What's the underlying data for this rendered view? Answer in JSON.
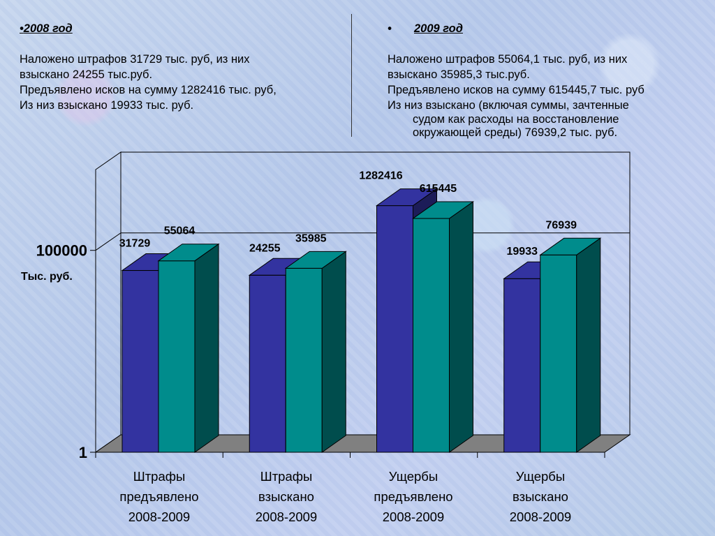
{
  "left_text": {
    "bullet": "•",
    "heading": "2008 год",
    "lines": [
      "Наложено штрафов 31729  тыс. руб, из них",
      "взыскано 24255 тыс.руб.",
      "Предъявлено исков на сумму 1282416 тыс. руб,",
      "Из низ взыскано 19933 тыс. руб."
    ]
  },
  "right_text": {
    "bullet": "•",
    "heading": "2009 год",
    "lines": [
      "Наложено штрафов 55064,1  тыс. руб, из них",
      "взыскано 35985,3 тыс.руб.",
      "Предъявлено исков на сумму 615445,7 тыс. руб",
      "Из низ взыскано (включая суммы, зачтенные"
    ],
    "hanging_lines": [
      "судом как расходы на восстановление",
      "окружающей среды) 76939,2 тыс. руб."
    ]
  },
  "chart_data": {
    "type": "bar",
    "scale": "log",
    "categories": [
      [
        "Штрафы",
        "предъявлено",
        "2008-2009"
      ],
      [
        "Штрафы",
        "взыскано",
        "2008-2009"
      ],
      [
        "Ущербы",
        "предъявлено",
        "2008-2009"
      ],
      [
        "Ущербы",
        "взыскано",
        "2008-2009"
      ]
    ],
    "series": [
      {
        "color": "#3333a0",
        "values": [
          31729,
          24255,
          1282416,
          19933
        ],
        "labels": [
          "31729",
          "24255",
          "1282416",
          "19933"
        ]
      },
      {
        "color": "#008c8c",
        "values": [
          55064,
          35985,
          615445,
          76939
        ],
        "labels": [
          "55064",
          "35985",
          "615445",
          "76939"
        ]
      }
    ],
    "y_ticks": [
      {
        "value": 1,
        "label": "1"
      },
      {
        "value": 100000,
        "label": "100000"
      }
    ],
    "ylabel": "Тыс. руб.",
    "floor_color": "#808080",
    "ylim": [
      1,
      10000000
    ]
  }
}
